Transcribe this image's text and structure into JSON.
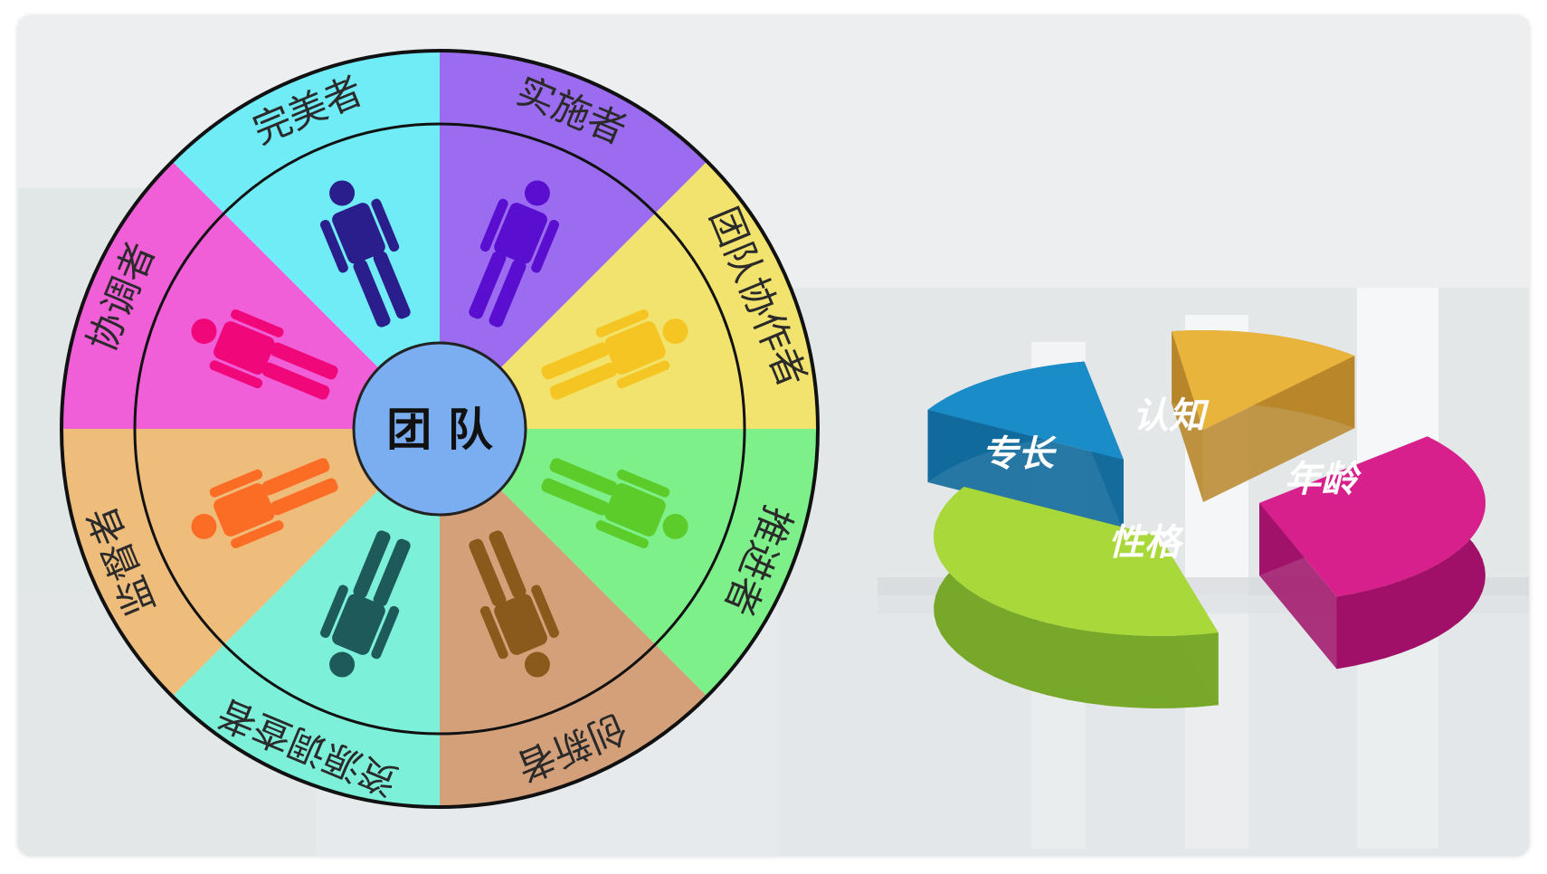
{
  "wheel": {
    "center_label": "团 队",
    "segments": [
      {
        "label": "实施者",
        "color": "#9b6cf0",
        "figure_color": "#5a0fd0"
      },
      {
        "label": "团队协作者",
        "color": "#f2e36e",
        "figure_color": "#f5c623"
      },
      {
        "label": "推进者",
        "color": "#7df08a",
        "figure_color": "#5ccc2a"
      },
      {
        "label": "创新者",
        "color": "#d4a07a",
        "figure_color": "#8a5a1c"
      },
      {
        "label": "资源调查者",
        "color": "#7df0da",
        "figure_color": "#1f5a5a"
      },
      {
        "label": "监督者",
        "color": "#eebd7c",
        "figure_color": "#fb6c25"
      },
      {
        "label": "协调者",
        "color": "#f05ed8",
        "figure_color": "#f0087a"
      },
      {
        "label": "完美者",
        "color": "#70ecf7",
        "figure_color": "#2a1e8c"
      }
    ],
    "hub_color": "#7aaef0"
  },
  "pie": {
    "slices": [
      {
        "label": "认知",
        "color": "#e8b43c",
        "side_color": "#b8862a"
      },
      {
        "label": "年龄",
        "color": "#d8208c",
        "side_color": "#a01068"
      },
      {
        "label": "性格",
        "color": "#a8d83a",
        "side_color": "#78a82a"
      },
      {
        "label": "专长",
        "color": "#1a8cc8",
        "side_color": "#126a9c"
      }
    ]
  }
}
